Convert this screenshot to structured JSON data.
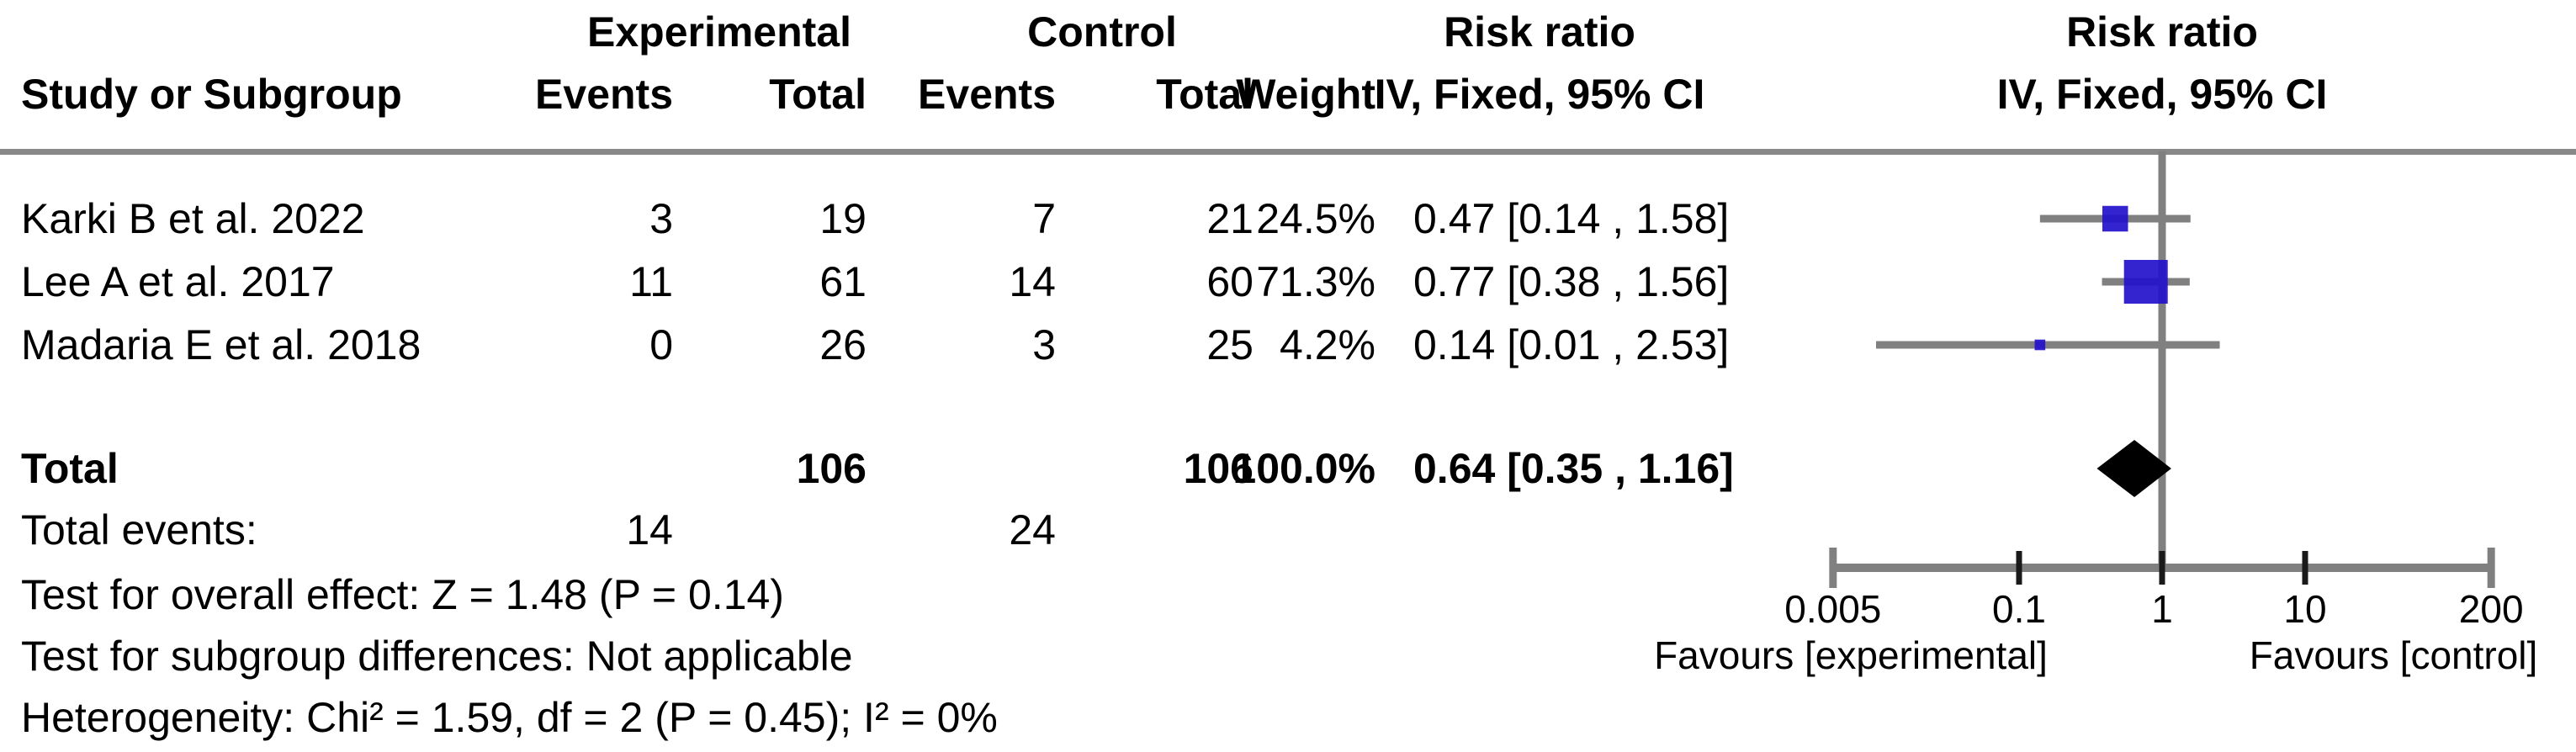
{
  "colors": {
    "square_blue": "#2211cc",
    "ci_line_gray": "#808080",
    "axis_gray": "#808080",
    "separator_gray": "#888888",
    "diamond_black": "#000000",
    "text_black": "#000000"
  },
  "header": {
    "group_experimental": "Experimental",
    "group_control": "Control",
    "risk_ratio_left_line1": "Risk ratio",
    "risk_ratio_left_line2": "IV, Fixed, 95% CI",
    "risk_ratio_plot_line1": "Risk ratio",
    "risk_ratio_plot_line2": "IV, Fixed, 95% CI",
    "study": "Study or Subgroup",
    "events_experimental": "Events",
    "total_experimental": "Total",
    "events_control": "Events",
    "total_control": "Total",
    "weight": "Weight"
  },
  "studies": [
    {
      "name": "Karki B et al. 2022",
      "exp_events": "3",
      "exp_total": "19",
      "ctrl_events": "7",
      "ctrl_total": "21",
      "weight": "24.5%",
      "ci_text": "0.47 [0.14 , 1.58]"
    },
    {
      "name": "Lee A et al. 2017",
      "exp_events": "11",
      "exp_total": "61",
      "ctrl_events": "14",
      "ctrl_total": "60",
      "weight": "71.3%",
      "ci_text": "0.77 [0.38 , 1.56]"
    },
    {
      "name": "Madaria E et al. 2018",
      "exp_events": "0",
      "exp_total": "26",
      "ctrl_events": "3",
      "ctrl_total": "25",
      "weight": "4.2%",
      "ci_text": "0.14 [0.01 , 2.53]"
    }
  ],
  "total_row": {
    "label": "Total",
    "exp_total": "106",
    "ctrl_total": "106",
    "weight": "100.0%",
    "ci_text": "0.64 [0.35 , 1.16]"
  },
  "total_events_row": {
    "label": "Total events:",
    "exp": "14",
    "ctrl": "24"
  },
  "stats": {
    "overall_effect": "Test for overall effect: Z = 1.48 (P = 0.14)",
    "subgroup_differences": "Test for subgroup differences: Not applicable",
    "heterogeneity": "Heterogeneity: Chi² = 1.59, df = 2 (P = 0.45); I² = 0%"
  },
  "chart_data": {
    "type": "scatter",
    "subtype": "forest-plot",
    "effect_measure": "Risk ratio",
    "method": "IV, Fixed, 95% CI",
    "x_scale": "log10",
    "x_range": [
      0.005,
      200
    ],
    "null_line": 1,
    "x_ticks": [
      0.005,
      0.1,
      1,
      10,
      200
    ],
    "x_tick_labels": [
      "0.005",
      "0.1",
      "1",
      "10",
      "200"
    ],
    "studies": [
      {
        "label": "Karki B et al. 2022",
        "rr": 0.47,
        "ci_low": 0.14,
        "ci_high": 1.58,
        "weight_pct": 24.5
      },
      {
        "label": "Lee A et al. 2017",
        "rr": 0.77,
        "ci_low": 0.38,
        "ci_high": 1.56,
        "weight_pct": 71.3
      },
      {
        "label": "Madaria E et al. 2018",
        "rr": 0.14,
        "ci_low": 0.01,
        "ci_high": 2.53,
        "weight_pct": 4.2
      }
    ],
    "total": {
      "label": "Total",
      "rr": 0.64,
      "ci_low": 0.35,
      "ci_high": 1.16,
      "weight_pct": 100.0
    },
    "favours_left": "Favours [experimental]",
    "favours_right": "Favours [control]"
  }
}
